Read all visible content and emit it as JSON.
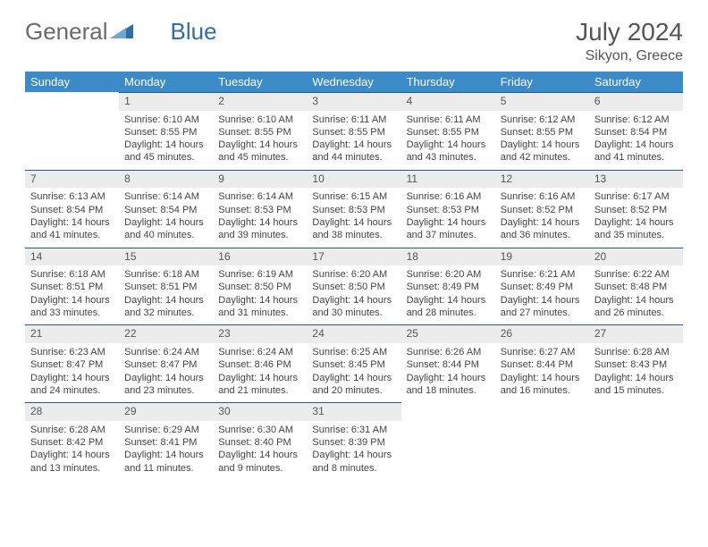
{
  "brand": {
    "text1": "General",
    "text2": "Blue"
  },
  "header": {
    "month": "July 2024",
    "location": "Sikyon, Greece"
  },
  "colors": {
    "header_bg": "#3b8bc9",
    "daynum_bg": "#ececec",
    "daynum_border": "#2a5a8a",
    "text": "#444"
  },
  "day_names": [
    "Sunday",
    "Monday",
    "Tuesday",
    "Wednesday",
    "Thursday",
    "Friday",
    "Saturday"
  ],
  "calendar": {
    "type": "table",
    "weeks": [
      [
        {
          "num": "",
          "lines": []
        },
        {
          "num": "1",
          "lines": [
            "Sunrise: 6:10 AM",
            "Sunset: 8:55 PM",
            "Daylight: 14 hours and 45 minutes."
          ]
        },
        {
          "num": "2",
          "lines": [
            "Sunrise: 6:10 AM",
            "Sunset: 8:55 PM",
            "Daylight: 14 hours and 45 minutes."
          ]
        },
        {
          "num": "3",
          "lines": [
            "Sunrise: 6:11 AM",
            "Sunset: 8:55 PM",
            "Daylight: 14 hours and 44 minutes."
          ]
        },
        {
          "num": "4",
          "lines": [
            "Sunrise: 6:11 AM",
            "Sunset: 8:55 PM",
            "Daylight: 14 hours and 43 minutes."
          ]
        },
        {
          "num": "5",
          "lines": [
            "Sunrise: 6:12 AM",
            "Sunset: 8:55 PM",
            "Daylight: 14 hours and 42 minutes."
          ]
        },
        {
          "num": "6",
          "lines": [
            "Sunrise: 6:12 AM",
            "Sunset: 8:54 PM",
            "Daylight: 14 hours and 41 minutes."
          ]
        }
      ],
      [
        {
          "num": "7",
          "lines": [
            "Sunrise: 6:13 AM",
            "Sunset: 8:54 PM",
            "Daylight: 14 hours and 41 minutes."
          ]
        },
        {
          "num": "8",
          "lines": [
            "Sunrise: 6:14 AM",
            "Sunset: 8:54 PM",
            "Daylight: 14 hours and 40 minutes."
          ]
        },
        {
          "num": "9",
          "lines": [
            "Sunrise: 6:14 AM",
            "Sunset: 8:53 PM",
            "Daylight: 14 hours and 39 minutes."
          ]
        },
        {
          "num": "10",
          "lines": [
            "Sunrise: 6:15 AM",
            "Sunset: 8:53 PM",
            "Daylight: 14 hours and 38 minutes."
          ]
        },
        {
          "num": "11",
          "lines": [
            "Sunrise: 6:16 AM",
            "Sunset: 8:53 PM",
            "Daylight: 14 hours and 37 minutes."
          ]
        },
        {
          "num": "12",
          "lines": [
            "Sunrise: 6:16 AM",
            "Sunset: 8:52 PM",
            "Daylight: 14 hours and 36 minutes."
          ]
        },
        {
          "num": "13",
          "lines": [
            "Sunrise: 6:17 AM",
            "Sunset: 8:52 PM",
            "Daylight: 14 hours and 35 minutes."
          ]
        }
      ],
      [
        {
          "num": "14",
          "lines": [
            "Sunrise: 6:18 AM",
            "Sunset: 8:51 PM",
            "Daylight: 14 hours and 33 minutes."
          ]
        },
        {
          "num": "15",
          "lines": [
            "Sunrise: 6:18 AM",
            "Sunset: 8:51 PM",
            "Daylight: 14 hours and 32 minutes."
          ]
        },
        {
          "num": "16",
          "lines": [
            "Sunrise: 6:19 AM",
            "Sunset: 8:50 PM",
            "Daylight: 14 hours and 31 minutes."
          ]
        },
        {
          "num": "17",
          "lines": [
            "Sunrise: 6:20 AM",
            "Sunset: 8:50 PM",
            "Daylight: 14 hours and 30 minutes."
          ]
        },
        {
          "num": "18",
          "lines": [
            "Sunrise: 6:20 AM",
            "Sunset: 8:49 PM",
            "Daylight: 14 hours and 28 minutes."
          ]
        },
        {
          "num": "19",
          "lines": [
            "Sunrise: 6:21 AM",
            "Sunset: 8:49 PM",
            "Daylight: 14 hours and 27 minutes."
          ]
        },
        {
          "num": "20",
          "lines": [
            "Sunrise: 6:22 AM",
            "Sunset: 8:48 PM",
            "Daylight: 14 hours and 26 minutes."
          ]
        }
      ],
      [
        {
          "num": "21",
          "lines": [
            "Sunrise: 6:23 AM",
            "Sunset: 8:47 PM",
            "Daylight: 14 hours and 24 minutes."
          ]
        },
        {
          "num": "22",
          "lines": [
            "Sunrise: 6:24 AM",
            "Sunset: 8:47 PM",
            "Daylight: 14 hours and 23 minutes."
          ]
        },
        {
          "num": "23",
          "lines": [
            "Sunrise: 6:24 AM",
            "Sunset: 8:46 PM",
            "Daylight: 14 hours and 21 minutes."
          ]
        },
        {
          "num": "24",
          "lines": [
            "Sunrise: 6:25 AM",
            "Sunset: 8:45 PM",
            "Daylight: 14 hours and 20 minutes."
          ]
        },
        {
          "num": "25",
          "lines": [
            "Sunrise: 6:26 AM",
            "Sunset: 8:44 PM",
            "Daylight: 14 hours and 18 minutes."
          ]
        },
        {
          "num": "26",
          "lines": [
            "Sunrise: 6:27 AM",
            "Sunset: 8:44 PM",
            "Daylight: 14 hours and 16 minutes."
          ]
        },
        {
          "num": "27",
          "lines": [
            "Sunrise: 6:28 AM",
            "Sunset: 8:43 PM",
            "Daylight: 14 hours and 15 minutes."
          ]
        }
      ],
      [
        {
          "num": "28",
          "lines": [
            "Sunrise: 6:28 AM",
            "Sunset: 8:42 PM",
            "Daylight: 14 hours and 13 minutes."
          ]
        },
        {
          "num": "29",
          "lines": [
            "Sunrise: 6:29 AM",
            "Sunset: 8:41 PM",
            "Daylight: 14 hours and 11 minutes."
          ]
        },
        {
          "num": "30",
          "lines": [
            "Sunrise: 6:30 AM",
            "Sunset: 8:40 PM",
            "Daylight: 14 hours and 9 minutes."
          ]
        },
        {
          "num": "31",
          "lines": [
            "Sunrise: 6:31 AM",
            "Sunset: 8:39 PM",
            "Daylight: 14 hours and 8 minutes."
          ]
        },
        {
          "num": "",
          "lines": []
        },
        {
          "num": "",
          "lines": []
        },
        {
          "num": "",
          "lines": []
        }
      ]
    ]
  }
}
